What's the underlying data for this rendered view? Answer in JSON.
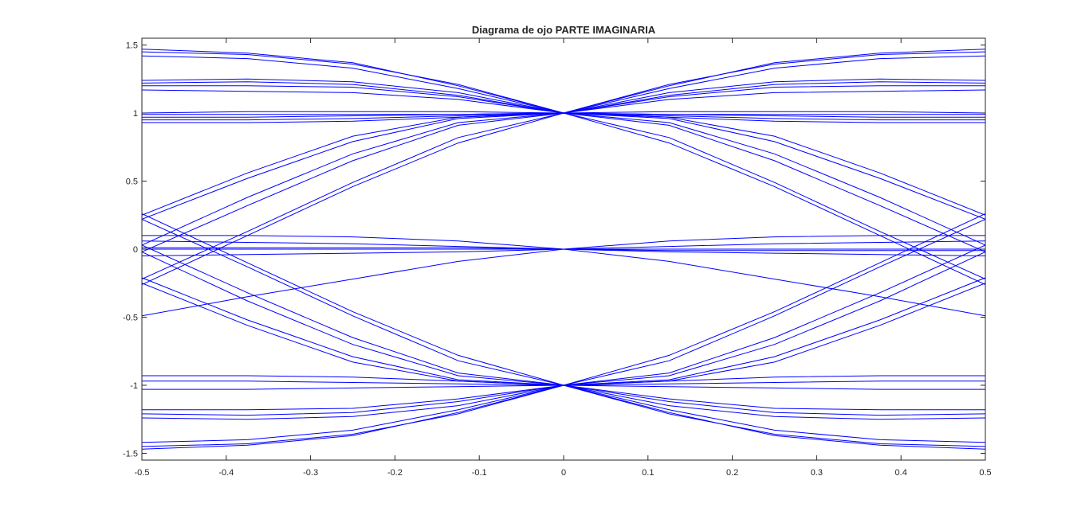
{
  "chart_data": {
    "type": "line",
    "title": "Diagrama de ojo PARTE IMAGINARIA",
    "xlabel": "",
    "ylabel": "",
    "xlim": [
      -0.5,
      0.5
    ],
    "ylim": [
      -1.55,
      1.55
    ],
    "x_ticks": [
      -0.5,
      -0.4,
      -0.3,
      -0.2,
      -0.1,
      0,
      0.1,
      0.2,
      0.3,
      0.4,
      0.5
    ],
    "x_tick_labels": [
      "-0.5",
      "-0.4",
      "-0.3",
      "-0.2",
      "-0.1",
      "0",
      "0.1",
      "0.2",
      "0.3",
      "0.4",
      "0.5"
    ],
    "y_ticks": [
      -1.5,
      -1,
      -0.5,
      0,
      0.5,
      1,
      1.5
    ],
    "y_tick_labels": [
      "-1.5",
      "-1",
      "-0.5",
      "0",
      "0.5",
      "1",
      "1.5"
    ],
    "grid": false,
    "line_color": "#0000ff",
    "x": [
      -0.5,
      -0.375,
      -0.25,
      -0.125,
      0,
      0.125,
      0.25,
      0.375,
      0.5
    ],
    "series": [
      {
        "values": [
          1.45,
          1.43,
          1.36,
          1.21,
          1.0,
          1.21,
          1.36,
          1.43,
          1.45
        ]
      },
      {
        "values": [
          1.42,
          1.4,
          1.33,
          1.18,
          1.0,
          1.18,
          1.33,
          1.4,
          1.42
        ]
      },
      {
        "values": [
          1.47,
          1.44,
          1.37,
          1.2,
          1.0,
          1.2,
          1.37,
          1.44,
          1.47
        ]
      },
      {
        "values": [
          1.24,
          1.25,
          1.23,
          1.15,
          1.0,
          1.15,
          1.23,
          1.25,
          1.24
        ]
      },
      {
        "values": [
          1.22,
          1.23,
          1.21,
          1.13,
          1.0,
          1.13,
          1.21,
          1.23,
          1.22
        ]
      },
      {
        "values": [
          1.2,
          1.2,
          1.19,
          1.12,
          1.0,
          1.12,
          1.19,
          1.2,
          1.2
        ]
      },
      {
        "values": [
          1.17,
          1.16,
          1.15,
          1.1,
          1.0,
          1.1,
          1.15,
          1.16,
          1.17
        ]
      },
      {
        "values": [
          1.0,
          1.01,
          1.01,
          1.01,
          1.0,
          1.01,
          1.01,
          1.01,
          1.0
        ]
      },
      {
        "values": [
          0.99,
          0.99,
          0.99,
          0.99,
          1.0,
          0.99,
          0.99,
          0.99,
          0.99
        ]
      },
      {
        "values": [
          0.97,
          0.97,
          0.98,
          0.99,
          1.0,
          0.99,
          0.98,
          0.97,
          0.97
        ]
      },
      {
        "values": [
          0.95,
          0.95,
          0.96,
          0.98,
          1.0,
          0.98,
          0.96,
          0.95,
          0.95
        ]
      },
      {
        "values": [
          0.93,
          0.93,
          0.94,
          0.97,
          1.0,
          0.97,
          0.94,
          0.93,
          0.93
        ]
      },
      {
        "values": [
          0.25,
          0.56,
          0.83,
          0.97,
          1.0,
          0.97,
          0.83,
          0.56,
          0.25
        ]
      },
      {
        "values": [
          0.22,
          0.52,
          0.79,
          0.96,
          1.0,
          0.96,
          0.79,
          0.52,
          0.22
        ]
      },
      {
        "values": [
          0.03,
          0.38,
          0.7,
          0.93,
          1.0,
          0.93,
          0.7,
          0.38,
          0.03
        ]
      },
      {
        "values": [
          -0.02,
          0.32,
          0.65,
          0.91,
          1.0,
          0.91,
          0.65,
          0.32,
          -0.02
        ]
      },
      {
        "values": [
          -0.22,
          0.13,
          0.49,
          0.82,
          1.0,
          0.82,
          0.49,
          0.13,
          -0.22
        ]
      },
      {
        "values": [
          -0.26,
          0.1,
          0.46,
          0.78,
          1.0,
          0.78,
          0.46,
          0.1,
          -0.26
        ]
      },
      {
        "values": [
          -1.45,
          -1.43,
          -1.36,
          -1.21,
          -1.0,
          -1.21,
          -1.36,
          -1.43,
          -1.45
        ]
      },
      {
        "values": [
          -1.42,
          -1.4,
          -1.33,
          -1.18,
          -1.0,
          -1.18,
          -1.33,
          -1.4,
          -1.42
        ]
      },
      {
        "values": [
          -1.47,
          -1.44,
          -1.37,
          -1.2,
          -1.0,
          -1.2,
          -1.37,
          -1.44,
          -1.47
        ]
      },
      {
        "values": [
          -1.24,
          -1.25,
          -1.23,
          -1.15,
          -1.0,
          -1.15,
          -1.23,
          -1.25,
          -1.24
        ]
      },
      {
        "values": [
          -1.21,
          -1.22,
          -1.2,
          -1.12,
          -1.0,
          -1.12,
          -1.2,
          -1.22,
          -1.21
        ]
      },
      {
        "values": [
          -1.18,
          -1.18,
          -1.17,
          -1.1,
          -1.0,
          -1.1,
          -1.17,
          -1.18,
          -1.18
        ]
      },
      {
        "values": [
          -1.03,
          -1.03,
          -1.02,
          -1.01,
          -1.0,
          -1.01,
          -1.02,
          -1.03,
          -1.03
        ]
      },
      {
        "values": [
          -0.97,
          -0.97,
          -0.98,
          -0.99,
          -1.0,
          -0.99,
          -0.98,
          -0.97,
          -0.97
        ]
      },
      {
        "values": [
          -0.93,
          -0.93,
          -0.94,
          -0.97,
          -1.0,
          -0.97,
          -0.94,
          -0.93,
          -0.93
        ]
      },
      {
        "values": [
          -0.25,
          -0.56,
          -0.83,
          -0.97,
          -1.0,
          -0.97,
          -0.83,
          -0.56,
          -0.25
        ]
      },
      {
        "values": [
          -0.21,
          -0.52,
          -0.79,
          -0.96,
          -1.0,
          -0.96,
          -0.79,
          -0.52,
          -0.21
        ]
      },
      {
        "values": [
          -0.02,
          -0.38,
          -0.7,
          -0.93,
          -1.0,
          -0.93,
          -0.7,
          -0.38,
          -0.02
        ]
      },
      {
        "values": [
          0.03,
          -0.32,
          -0.65,
          -0.91,
          -1.0,
          -0.91,
          -0.65,
          -0.32,
          0.03
        ]
      },
      {
        "values": [
          0.22,
          -0.13,
          -0.49,
          -0.82,
          -1.0,
          -0.82,
          -0.49,
          -0.13,
          0.22
        ]
      },
      {
        "values": [
          0.26,
          -0.1,
          -0.46,
          -0.78,
          -1.0,
          -0.78,
          -0.46,
          -0.1,
          0.26
        ]
      },
      {
        "values": [
          0.0,
          0.0,
          0.0,
          0.0,
          0.0,
          0.0,
          0.0,
          0.0,
          0.0
        ]
      },
      {
        "values": [
          0.01,
          0.01,
          0.01,
          0.01,
          0.0,
          -0.01,
          -0.01,
          -0.01,
          -0.01
        ]
      },
      {
        "values": [
          0.1,
          0.1,
          0.09,
          0.06,
          0.0,
          -0.09,
          -0.22,
          -0.35,
          -0.49
        ]
      },
      {
        "values": [
          -0.49,
          -0.35,
          -0.22,
          -0.09,
          0.0,
          0.06,
          0.09,
          0.1,
          0.1
        ]
      },
      {
        "values": [
          0.06,
          0.05,
          0.04,
          0.02,
          0.0,
          0.02,
          0.04,
          0.05,
          0.06
        ]
      },
      {
        "values": [
          -0.05,
          -0.04,
          -0.03,
          -0.02,
          0.0,
          -0.02,
          -0.03,
          -0.04,
          -0.05
        ]
      }
    ]
  }
}
